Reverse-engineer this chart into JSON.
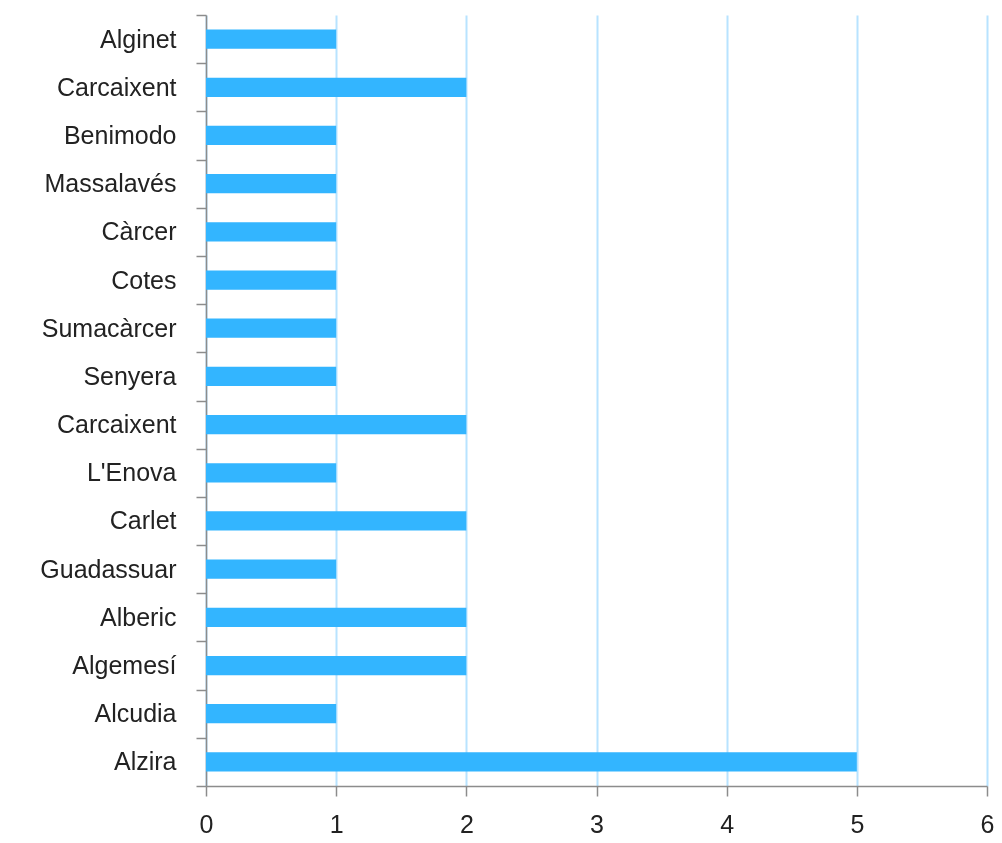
{
  "chart_data": {
    "type": "bar",
    "orientation": "horizontal",
    "categories": [
      "Alginet",
      "Carcaixent",
      "Benimodo",
      "Massalavés",
      "Càrcer",
      "Cotes",
      "Sumacàrcer",
      "Senyera",
      "Carcaixent",
      "L'Enova",
      "Carlet",
      "Guadassuar",
      "Alberic",
      "Algemesí",
      "Alcudia",
      "Alzira"
    ],
    "values": [
      1,
      2,
      1,
      1,
      1,
      1,
      1,
      1,
      2,
      1,
      2,
      1,
      2,
      2,
      1,
      5
    ],
    "color": "#33b5ff",
    "xlim": [
      0,
      6
    ],
    "xticks": [
      0,
      1,
      2,
      3,
      4,
      5,
      6
    ],
    "grid": "x"
  }
}
